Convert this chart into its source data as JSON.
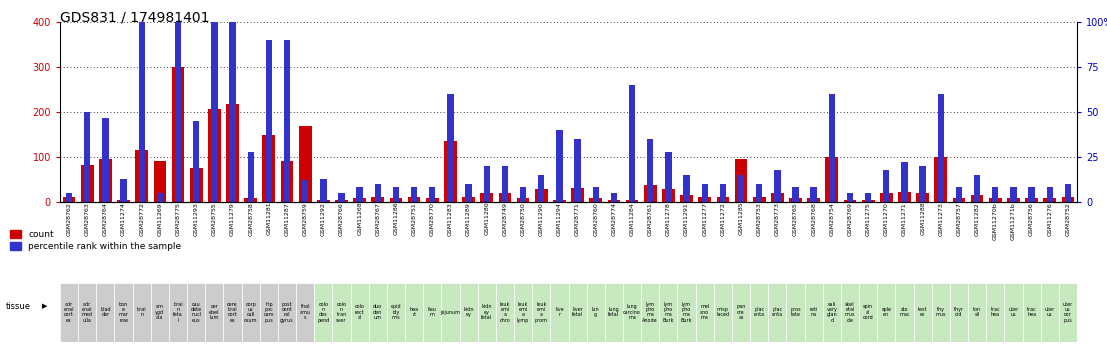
{
  "title": "GDS831 / 174981401",
  "samples": [
    {
      "id": "GSM28762",
      "tissue": "adr\nenal\ncort\nex",
      "count": 10,
      "pct": 5,
      "group": "gray"
    },
    {
      "id": "GSM28763",
      "tissue": "adr\nenal\nmed\nulla",
      "count": 82,
      "pct": 50,
      "group": "gray"
    },
    {
      "id": "GSM28764",
      "tissue": "blad\nder",
      "count": 95,
      "pct": 47,
      "group": "gray"
    },
    {
      "id": "GSM11274",
      "tissue": "bon\ne\nmar\nrow",
      "count": 5,
      "pct": 13,
      "group": "gray"
    },
    {
      "id": "GSM28772",
      "tissue": "brai\nn",
      "count": 115,
      "pct": 102,
      "group": "gray"
    },
    {
      "id": "GSM11269",
      "tissue": "am\nygd\nala",
      "count": 90,
      "pct": 5,
      "group": "gray"
    },
    {
      "id": "GSM28775",
      "tissue": "brai\nn\nfeta\nl",
      "count": 300,
      "pct": 168,
      "group": "gray"
    },
    {
      "id": "GSM11293",
      "tissue": "cau\ndate\nnucl\neus",
      "count": 75,
      "pct": 45,
      "group": "gray"
    },
    {
      "id": "GSM28755",
      "tissue": "cer\nebel\nlum",
      "count": 208,
      "pct": 192,
      "group": "gray"
    },
    {
      "id": "GSM11279",
      "tissue": "cere\nbral\ncort\nex",
      "count": 218,
      "pct": 168,
      "group": "gray"
    },
    {
      "id": "GSM28758",
      "tissue": "corp\nus\ncall\nosum",
      "count": 8,
      "pct": 28,
      "group": "gray"
    },
    {
      "id": "GSM11281",
      "tissue": "hip\npoc\ncam\npus",
      "count": 150,
      "pct": 90,
      "group": "gray"
    },
    {
      "id": "GSM11287",
      "tissue": "post\ncent\nral\ngyrus",
      "count": 90,
      "pct": 90,
      "group": "gray"
    },
    {
      "id": "GSM28759",
      "tissue": "thal\namu\ns",
      "count": 168,
      "pct": 12,
      "group": "gray"
    },
    {
      "id": "GSM11292",
      "tissue": "colo\nn\ndes\npend",
      "count": 5,
      "pct": 13,
      "group": "green"
    },
    {
      "id": "GSM28766",
      "tissue": "colo\nn\ntran\nsver",
      "count": 5,
      "pct": 5,
      "group": "green"
    },
    {
      "id": "GSM11268",
      "tissue": "colo\nrect\nal",
      "count": 8,
      "pct": 8,
      "group": "green"
    },
    {
      "id": "GSM28767",
      "tissue": "duo\nden\num",
      "count": 10,
      "pct": 10,
      "group": "green"
    },
    {
      "id": "GSM11286",
      "tissue": "epid\nidy\nmis",
      "count": 8,
      "pct": 8,
      "group": "green"
    },
    {
      "id": "GSM28751",
      "tissue": "hea\nrt",
      "count": 10,
      "pct": 8,
      "group": "green"
    },
    {
      "id": "GSM28770",
      "tissue": "ileu\nm",
      "count": 8,
      "pct": 8,
      "group": "green"
    },
    {
      "id": "GSM11283",
      "tissue": "jejunum",
      "count": 135,
      "pct": 60,
      "group": "green"
    },
    {
      "id": "GSM11289",
      "tissue": "kidn\ney",
      "count": 10,
      "pct": 10,
      "group": "green"
    },
    {
      "id": "GSM11280",
      "tissue": "kidn\ney\nfetal",
      "count": 20,
      "pct": 20,
      "group": "green"
    },
    {
      "id": "GSM28749",
      "tissue": "leuk\nemi\na\nchro",
      "count": 20,
      "pct": 20,
      "group": "green"
    },
    {
      "id": "GSM28750",
      "tissue": "leuk\nemi\na\nlymp",
      "count": 8,
      "pct": 8,
      "group": "green"
    },
    {
      "id": "GSM11290",
      "tissue": "leuk\nemi\na\nprom",
      "count": 28,
      "pct": 15,
      "group": "green"
    },
    {
      "id": "GSM11294",
      "tissue": "live\nr",
      "count": 5,
      "pct": 40,
      "group": "green"
    },
    {
      "id": "GSM28771",
      "tissue": "liver\nfetal",
      "count": 30,
      "pct": 35,
      "group": "green"
    },
    {
      "id": "GSM28760",
      "tissue": "lun\ng",
      "count": 8,
      "pct": 8,
      "group": "green"
    },
    {
      "id": "GSM28774",
      "tissue": "lung\nfetal",
      "count": 5,
      "pct": 5,
      "group": "green"
    },
    {
      "id": "GSM11284",
      "tissue": "lung\ncarcino\nma",
      "count": 5,
      "pct": 65,
      "group": "green"
    },
    {
      "id": "GSM28761",
      "tissue": "lym\npho\nma\nAnode",
      "count": 38,
      "pct": 35,
      "group": "green"
    },
    {
      "id": "GSM11278",
      "tissue": "lym\npho\nma\nBurk",
      "count": 28,
      "pct": 28,
      "group": "green"
    },
    {
      "id": "GSM11291",
      "tissue": "lym\npho\nma\nBurk",
      "count": 15,
      "pct": 15,
      "group": "green"
    },
    {
      "id": "GSM11277",
      "tissue": "mel\nano\nma",
      "count": 10,
      "pct": 10,
      "group": "green"
    },
    {
      "id": "GSM11272",
      "tissue": "misp\nlaced",
      "count": 10,
      "pct": 10,
      "group": "green"
    },
    {
      "id": "GSM11285",
      "tissue": "pan\ncre\nas",
      "count": 95,
      "pct": 15,
      "group": "green"
    },
    {
      "id": "GSM28753",
      "tissue": "plac\nenta",
      "count": 10,
      "pct": 10,
      "group": "green"
    },
    {
      "id": "GSM28773",
      "tissue": "plac\nenta",
      "count": 20,
      "pct": 18,
      "group": "green"
    },
    {
      "id": "GSM28765",
      "tissue": "pros\ntate",
      "count": 8,
      "pct": 8,
      "group": "green"
    },
    {
      "id": "GSM28768",
      "tissue": "reti\nna",
      "count": 8,
      "pct": 8,
      "group": "green"
    },
    {
      "id": "GSM28754",
      "tissue": "sali\nvary\nglan\nd",
      "count": 100,
      "pct": 60,
      "group": "green"
    },
    {
      "id": "GSM28769",
      "tissue": "skel\netal\nmus\ncle",
      "count": 5,
      "pct": 5,
      "group": "green"
    },
    {
      "id": "GSM11275",
      "tissue": "spin\nal\ncord",
      "count": 5,
      "pct": 5,
      "group": "green"
    },
    {
      "id": "GSM11270",
      "tissue": "sple\nen",
      "count": 20,
      "pct": 18,
      "group": "green"
    },
    {
      "id": "GSM11271",
      "tissue": "sto\nmac",
      "count": 22,
      "pct": 22,
      "group": "green"
    },
    {
      "id": "GSM11288",
      "tissue": "test\nes",
      "count": 20,
      "pct": 20,
      "group": "green"
    },
    {
      "id": "GSM11273",
      "tissue": "thy\nmus",
      "count": 100,
      "pct": 60,
      "group": "green"
    },
    {
      "id": "GSM28757",
      "tissue": "thyr\noid",
      "count": 8,
      "pct": 8,
      "group": "green"
    },
    {
      "id": "GSM11282",
      "tissue": "ton\nsil",
      "count": 15,
      "pct": 15,
      "group": "green"
    },
    {
      "id": "GSM11270b",
      "tissue": "trac\nhea",
      "count": 8,
      "pct": 8,
      "group": "green"
    },
    {
      "id": "GSM11271b",
      "tissue": "uter\nus",
      "count": 8,
      "pct": 8,
      "group": "green"
    },
    {
      "id": "GSM28756",
      "tissue": "trac\nhea",
      "count": 8,
      "pct": 8,
      "group": "green"
    },
    {
      "id": "GSM11276",
      "tissue": "uter\nus",
      "count": 8,
      "pct": 8,
      "group": "green"
    },
    {
      "id": "GSM28752",
      "tissue": "uter\nus\ncor\npus",
      "count": 10,
      "pct": 10,
      "group": "green"
    }
  ],
  "count_color": "#cc0000",
  "pct_color": "#3333cc",
  "gray_bg": "#cccccc",
  "green_bg": "#c8e8c0",
  "right_axis_color": "#0000cc",
  "left_axis_color": "#cc0000"
}
